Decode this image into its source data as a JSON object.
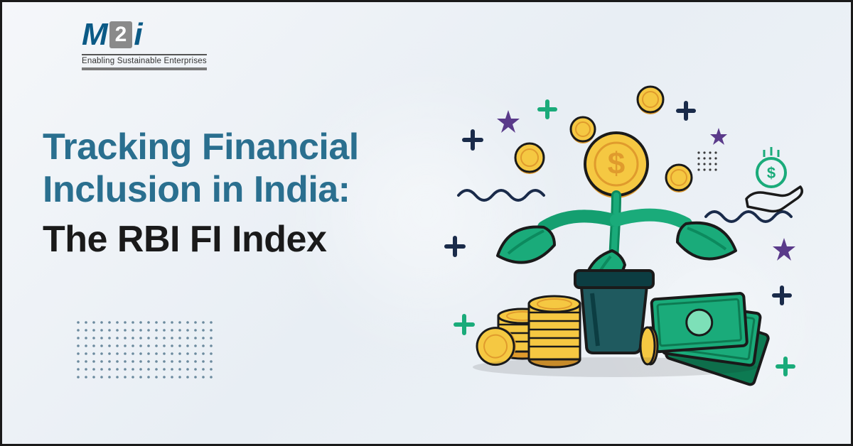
{
  "logo": {
    "mark_m": "M",
    "mark_2": "2",
    "mark_i": "i",
    "tagline": "Enabling Sustainable Enterprises"
  },
  "heading": {
    "line1": "Tracking Financial Inclusion in India:",
    "line2": "The RBI FI Index"
  },
  "colors": {
    "heading_teal": "#2a6f8f",
    "heading_black": "#1a1a1a",
    "dot_grid": "#6b8a9e",
    "coin_fill": "#f5c842",
    "coin_stroke": "#1a1a1a",
    "coin_shadow": "#e09b2d",
    "leaf_fill": "#1aab7a",
    "leaf_dark": "#0c8a5e",
    "pot_fill": "#1f5a5f",
    "pot_dark": "#0c3d42",
    "cash_fill": "#1aab7a",
    "cash_dark": "#0d7a52",
    "plus_navy": "#1a2b4a",
    "plus_green": "#1aab7a",
    "star_purple": "#5a3a8a",
    "wave_navy": "#1a2b4a",
    "hand_stroke": "#1a1a1a",
    "dollar_circle": "#1aab7a",
    "background_light": "#f5f7fa"
  },
  "dot_grid": {
    "rows": 8,
    "cols": 18,
    "spacing": 11,
    "radius": 1.8,
    "color": "#6b8a9e"
  },
  "illustration": {
    "type": "infographic",
    "description": "money-plant-growth",
    "elements": [
      "plant",
      "pot",
      "coins_stack",
      "cash_notes",
      "floating_coins",
      "plus_marks",
      "stars",
      "wavy_lines",
      "hand_with_coin"
    ]
  }
}
